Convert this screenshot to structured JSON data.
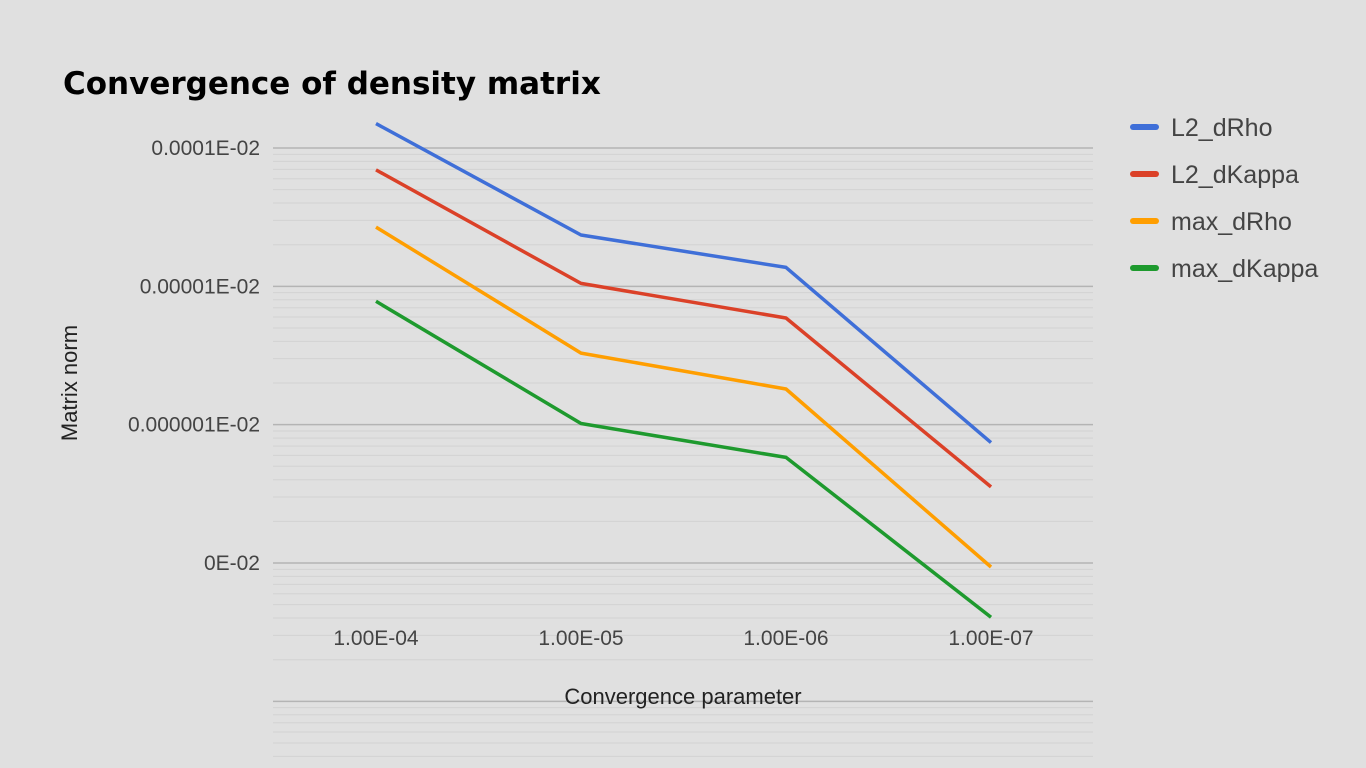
{
  "chart_data": {
    "type": "line",
    "title": "Convergence of density matrix",
    "xlabel": "Convergence parameter",
    "ylabel": "Matrix norm",
    "categories": [
      "1.00E-04",
      "1.00E-05",
      "1.00E-06",
      "1.00E-07"
    ],
    "y_scale": "log",
    "ylim": [
      3.5e-09,
      0.00015
    ],
    "y_ticks": [
      {
        "value": 0.0001,
        "label": "0.0001E-02"
      },
      {
        "value": 1e-05,
        "label": "0.00001E-02"
      },
      {
        "value": 1e-06,
        "label": "0.000001E-02"
      },
      {
        "value": 1e-07,
        "label": "0E-02"
      }
    ],
    "grid": true,
    "legend_position": "right",
    "series": [
      {
        "name": "L2_dRho",
        "color": "#3f6fd8",
        "values": [
          0.00015,
          2.35e-05,
          1.37e-05,
          7.42e-07
        ]
      },
      {
        "name": "L2_dKappa",
        "color": "#db4128",
        "values": [
          6.95e-05,
          1.05e-05,
          5.9e-06,
          3.55e-07
        ]
      },
      {
        "name": "max_dRho",
        "color": "#ff9e00",
        "values": [
          2.68e-05,
          3.29e-06,
          1.81e-06,
          9.35e-08
        ]
      },
      {
        "name": "max_dKappa",
        "color": "#1e9a2e",
        "values": [
          7.8e-06,
          1.02e-06,
          5.8e-07,
          4.05e-08
        ]
      }
    ]
  }
}
